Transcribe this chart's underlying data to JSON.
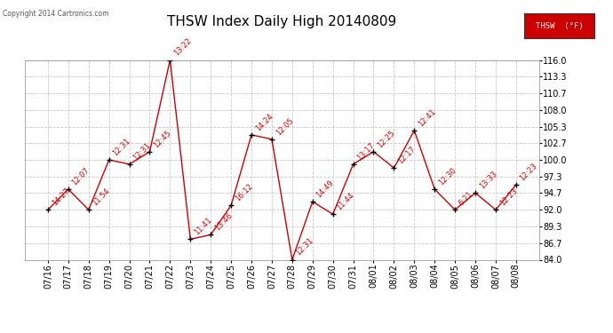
{
  "title": "THSW Index Daily High 20140809",
  "copyright": "Copyright 2014 Cartronics.com",
  "legend_label": "THSW  (°F)",
  "x_labels": [
    "07/16",
    "07/17",
    "07/18",
    "07/19",
    "07/20",
    "07/21",
    "07/22",
    "07/23",
    "07/24",
    "07/25",
    "07/26",
    "07/27",
    "07/28",
    "07/29",
    "07/30",
    "07/31",
    "08/01",
    "08/02",
    "08/03",
    "08/04",
    "08/05",
    "08/06",
    "08/07",
    "08/08"
  ],
  "y_values": [
    92.0,
    95.3,
    92.0,
    100.0,
    99.3,
    101.3,
    116.0,
    87.3,
    88.0,
    92.7,
    104.0,
    103.3,
    84.0,
    93.3,
    91.3,
    99.3,
    101.3,
    98.7,
    104.7,
    95.3,
    92.0,
    94.7,
    92.0,
    96.0
  ],
  "time_labels": [
    "14:27",
    "12:07",
    "11:54",
    "12:31",
    "12:31",
    "12:45",
    "13:22",
    "11:41",
    "13:46",
    "16:12",
    "14:24",
    "12:05",
    "12:31",
    "14:49",
    "11:44",
    "13:17",
    "12:25",
    "12:17",
    "12:41",
    "12:30",
    "6:21",
    "13:33",
    "12:23",
    "12:23"
  ],
  "ylim": [
    84.0,
    116.0
  ],
  "yticks": [
    84.0,
    86.7,
    89.3,
    92.0,
    94.7,
    97.3,
    100.0,
    102.7,
    105.3,
    108.0,
    110.7,
    113.3,
    116.0
  ],
  "line_color": "#cc0000",
  "marker_color": "#000000",
  "bg_color": "#ffffff",
  "grid_color": "#c8c8c8",
  "title_fontsize": 11,
  "tick_fontsize": 7,
  "annotation_fontsize": 6,
  "legend_bg": "#cc0000",
  "legend_fg": "#ffffff"
}
